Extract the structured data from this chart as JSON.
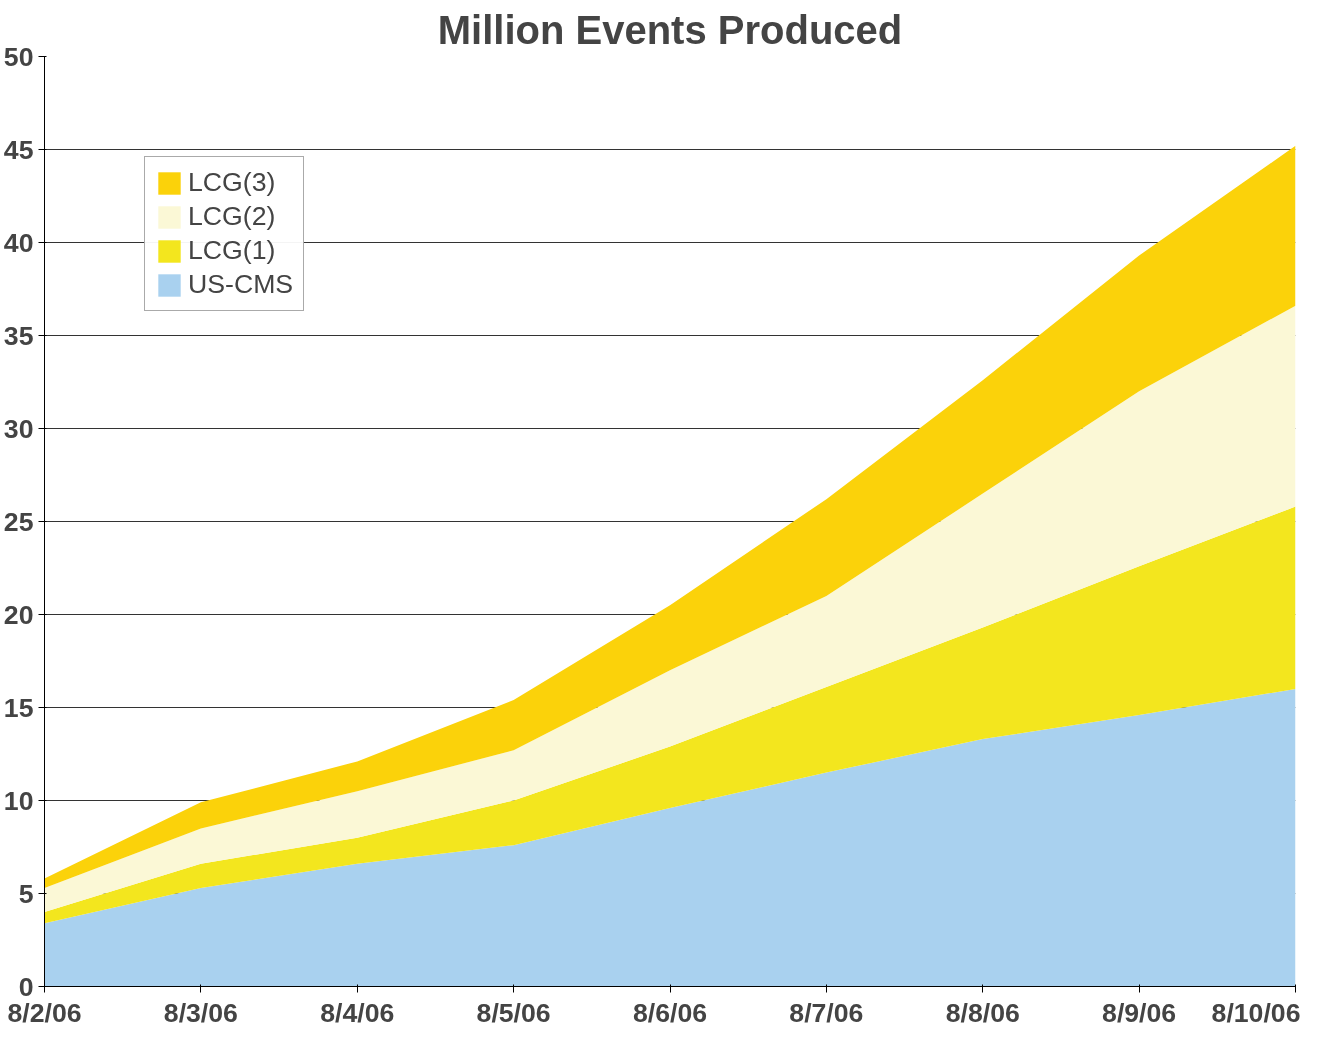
{
  "chart_data": {
    "type": "area",
    "title": "Million Events Produced",
    "stacked": true,
    "categories": [
      "8/2/06",
      "8/3/06",
      "8/4/06",
      "8/5/06",
      "8/6/06",
      "8/7/06",
      "8/8/06",
      "8/9/06",
      "8/10/06"
    ],
    "series": [
      {
        "name": "US-CMS",
        "color": "#a9d1ef",
        "values": [
          3.4,
          5.3,
          6.6,
          7.6,
          9.6,
          11.5,
          13.3,
          14.6,
          16.0
        ]
      },
      {
        "name": "LCG(1)",
        "color": "#f3e61e",
        "values": [
          0.6,
          1.3,
          1.4,
          2.4,
          3.3,
          4.6,
          6.0,
          8.0,
          9.8
        ]
      },
      {
        "name": "LCG(2)",
        "color": "#fbf8d6",
        "values": [
          1.3,
          1.9,
          2.5,
          2.7,
          4.1,
          4.9,
          7.2,
          9.4,
          10.8
        ]
      },
      {
        "name": "LCG(3)",
        "color": "#fbd20a",
        "values": [
          0.5,
          1.4,
          1.6,
          2.7,
          3.5,
          5.2,
          6.1,
          7.3,
          8.6
        ]
      }
    ],
    "ylim": [
      0,
      50
    ],
    "yticks": [
      0,
      5,
      10,
      15,
      20,
      25,
      30,
      35,
      40,
      45,
      50
    ],
    "grid": "y",
    "legend": "top left"
  }
}
